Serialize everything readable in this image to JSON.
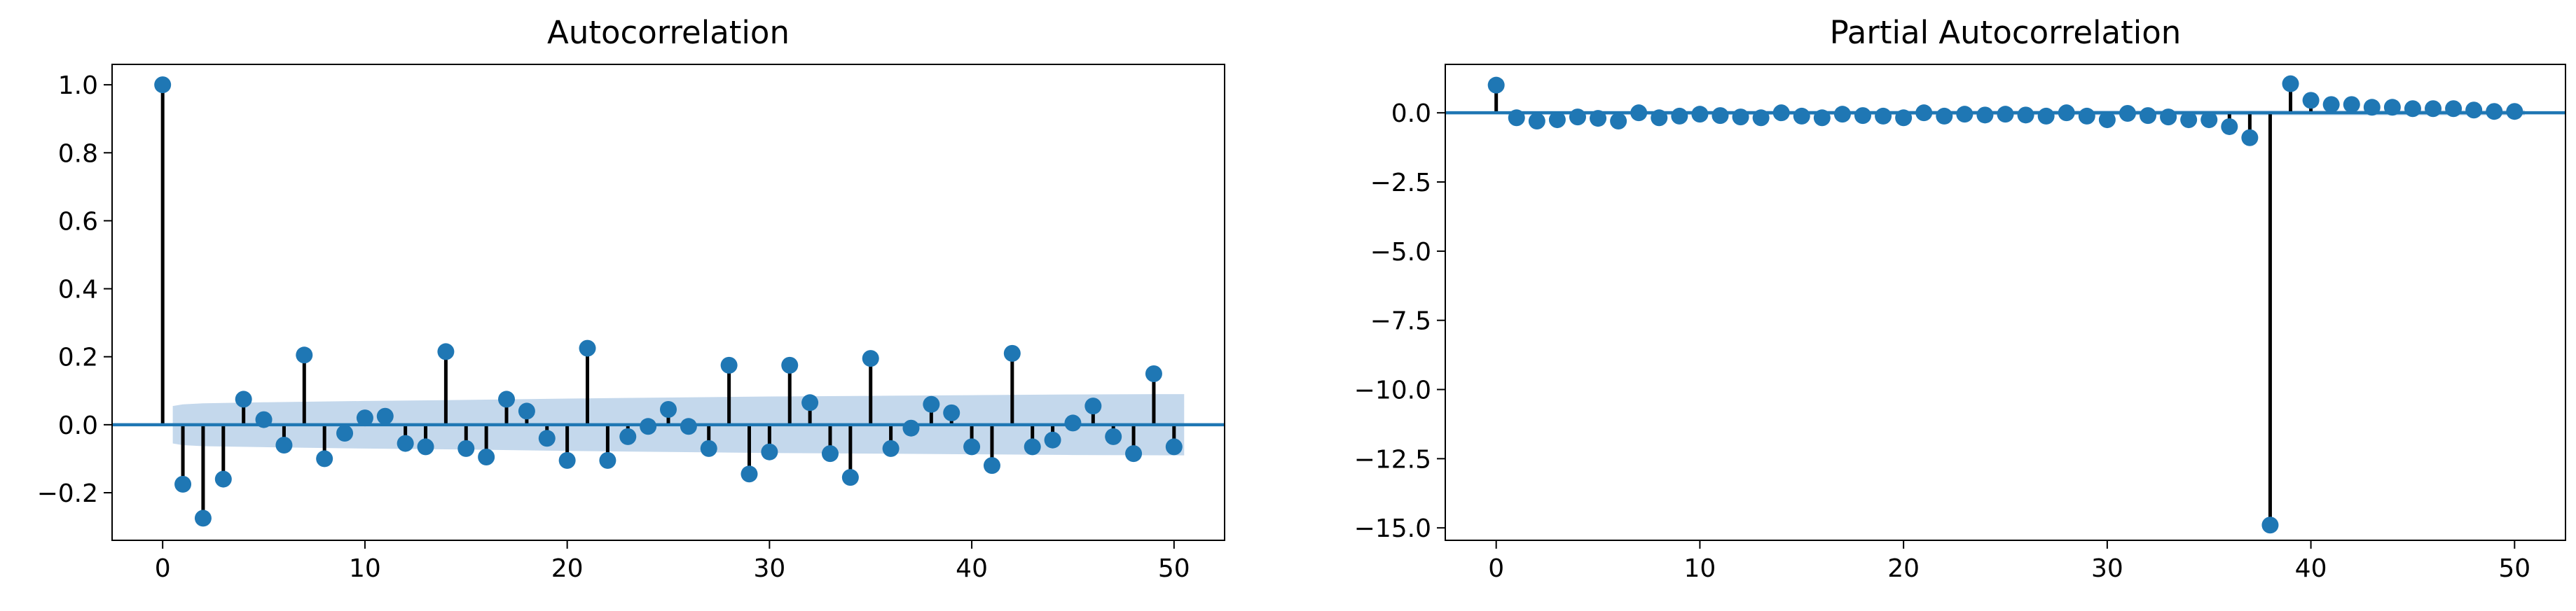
{
  "chart_data": [
    {
      "type": "stem",
      "title": "Autocorrelation",
      "xlabel": "",
      "ylabel": "",
      "xlim": [
        -2.5,
        52.5
      ],
      "ylim": [
        -0.34,
        1.06
      ],
      "xticks": [
        0,
        10,
        20,
        30,
        40,
        50
      ],
      "yticks": [
        -0.2,
        0.0,
        0.2,
        0.4,
        0.6,
        0.8,
        1.0
      ],
      "ytick_labels": [
        "−0.2",
        "0.0",
        "0.2",
        "0.4",
        "0.6",
        "0.8",
        "1.0"
      ],
      "lags": [
        0,
        1,
        2,
        3,
        4,
        5,
        6,
        7,
        8,
        9,
        10,
        11,
        12,
        13,
        14,
        15,
        16,
        17,
        18,
        19,
        20,
        21,
        22,
        23,
        24,
        25,
        26,
        27,
        28,
        29,
        30,
        31,
        32,
        33,
        34,
        35,
        36,
        37,
        38,
        39,
        40,
        41,
        42,
        43,
        44,
        45,
        46,
        47,
        48,
        49,
        50
      ],
      "values": [
        1.0,
        -0.175,
        -0.275,
        -0.16,
        0.075,
        0.015,
        -0.06,
        0.205,
        -0.1,
        -0.025,
        0.02,
        0.025,
        -0.055,
        -0.065,
        0.215,
        -0.07,
        -0.095,
        0.075,
        0.04,
        -0.04,
        -0.105,
        0.225,
        -0.105,
        -0.035,
        -0.005,
        0.045,
        -0.005,
        -0.07,
        0.175,
        -0.145,
        -0.08,
        0.175,
        0.065,
        -0.085,
        -0.155,
        0.195,
        -0.07,
        -0.01,
        0.06,
        0.035,
        -0.065,
        -0.12,
        0.21,
        -0.065,
        -0.045,
        0.005,
        0.055,
        -0.035,
        -0.085,
        0.15,
        -0.065
      ],
      "confidence_band": {
        "lags": [
          0.5,
          1,
          2,
          5,
          10,
          15,
          20,
          25,
          30,
          35,
          40,
          45,
          50,
          50.5
        ],
        "upper": [
          0.055,
          0.06,
          0.063,
          0.066,
          0.07,
          0.073,
          0.077,
          0.08,
          0.083,
          0.085,
          0.087,
          0.089,
          0.09,
          0.09
        ]
      },
      "grid": false
    },
    {
      "type": "stem",
      "title": "Partial Autocorrelation",
      "xlabel": "",
      "ylabel": "",
      "xlim": [
        -2.5,
        52.5
      ],
      "ylim": [
        -15.45,
        1.75
      ],
      "xticks": [
        0,
        10,
        20,
        30,
        40,
        50
      ],
      "yticks": [
        -15.0,
        -12.5,
        -10.0,
        -7.5,
        -5.0,
        -2.5,
        0.0
      ],
      "ytick_labels": [
        "−15.0",
        "−12.5",
        "−10.0",
        "−7.5",
        "−5.0",
        "−2.5",
        "0.0"
      ],
      "lags": [
        0,
        1,
        2,
        3,
        4,
        5,
        6,
        7,
        8,
        9,
        10,
        11,
        12,
        13,
        14,
        15,
        16,
        17,
        18,
        19,
        20,
        21,
        22,
        23,
        24,
        25,
        26,
        27,
        28,
        29,
        30,
        31,
        32,
        33,
        34,
        35,
        36,
        37,
        38,
        39,
        40,
        41,
        42,
        43,
        44,
        45,
        46,
        47,
        48,
        49,
        50
      ],
      "values": [
        1.0,
        -0.18,
        -0.3,
        -0.25,
        -0.15,
        -0.2,
        -0.3,
        0.0,
        -0.18,
        -0.12,
        -0.05,
        -0.1,
        -0.15,
        -0.18,
        0.0,
        -0.12,
        -0.18,
        -0.05,
        -0.1,
        -0.12,
        -0.18,
        0.0,
        -0.12,
        -0.05,
        -0.08,
        -0.05,
        -0.08,
        -0.12,
        0.0,
        -0.12,
        -0.25,
        -0.02,
        -0.1,
        -0.15,
        -0.25,
        -0.25,
        -0.5,
        -0.9,
        -14.9,
        1.05,
        0.45,
        0.3,
        0.3,
        0.2,
        0.2,
        0.15,
        0.15,
        0.15,
        0.1,
        0.05,
        0.05
      ],
      "confidence_band": {
        "lags": [
          0.5,
          1,
          10,
          20,
          30,
          40,
          50,
          50.5
        ],
        "upper": [
          0.055,
          0.06,
          0.07,
          0.077,
          0.083,
          0.087,
          0.09,
          0.09
        ]
      },
      "grid": false
    }
  ],
  "colors": {
    "marker": "#1f77b4",
    "stem": "#000000",
    "zero_line": "#1f77b4",
    "band": "#b0cbe5"
  }
}
